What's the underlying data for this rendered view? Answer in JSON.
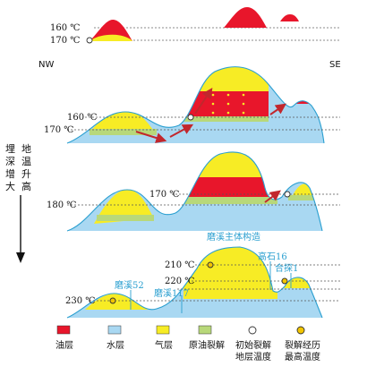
{
  "directions": {
    "left": "NW",
    "right": "SE"
  },
  "side_labels": {
    "burial": [
      "埋",
      "深",
      "增",
      "大"
    ],
    "geotemp": [
      "地",
      "温",
      "升",
      "高"
    ]
  },
  "temperatures": {
    "t160_top": "160 ℃",
    "t170_top": "170 ℃",
    "t160_s1": "160 ℃",
    "t170_s1": "170 ℃",
    "t170_s2": "170 ℃",
    "t180_s2": "180 ℃",
    "t210_s3": "210 ℃",
    "t220_s3": "220 ℃",
    "t230_s3": "230 ℃"
  },
  "annotations": {
    "main_structure": "磨溪主体构造",
    "gaoshi16": "高石16",
    "hetan1": "合探1",
    "moxi52": "磨溪52",
    "moxi117": "磨溪117"
  },
  "legend": [
    {
      "label": "油层",
      "color": "#e8162b"
    },
    {
      "label": "水层",
      "color": "#a9d8f2"
    },
    {
      "label": "气层",
      "color": "#f7ec25"
    },
    {
      "label": "原油裂解",
      "color": "#b8d87a"
    },
    {
      "label": "初始裂解\n地层温度",
      "color": "#ffffff"
    },
    {
      "label": "裂解经历\n最高温度",
      "color": "#f2c500"
    }
  ],
  "colors": {
    "oil": "#e8162b",
    "water": "#a9d8f2",
    "gas": "#f7ec25",
    "crack": "#b8d87a",
    "arrow": "#c2272d",
    "outline": "#2a9fd0"
  }
}
